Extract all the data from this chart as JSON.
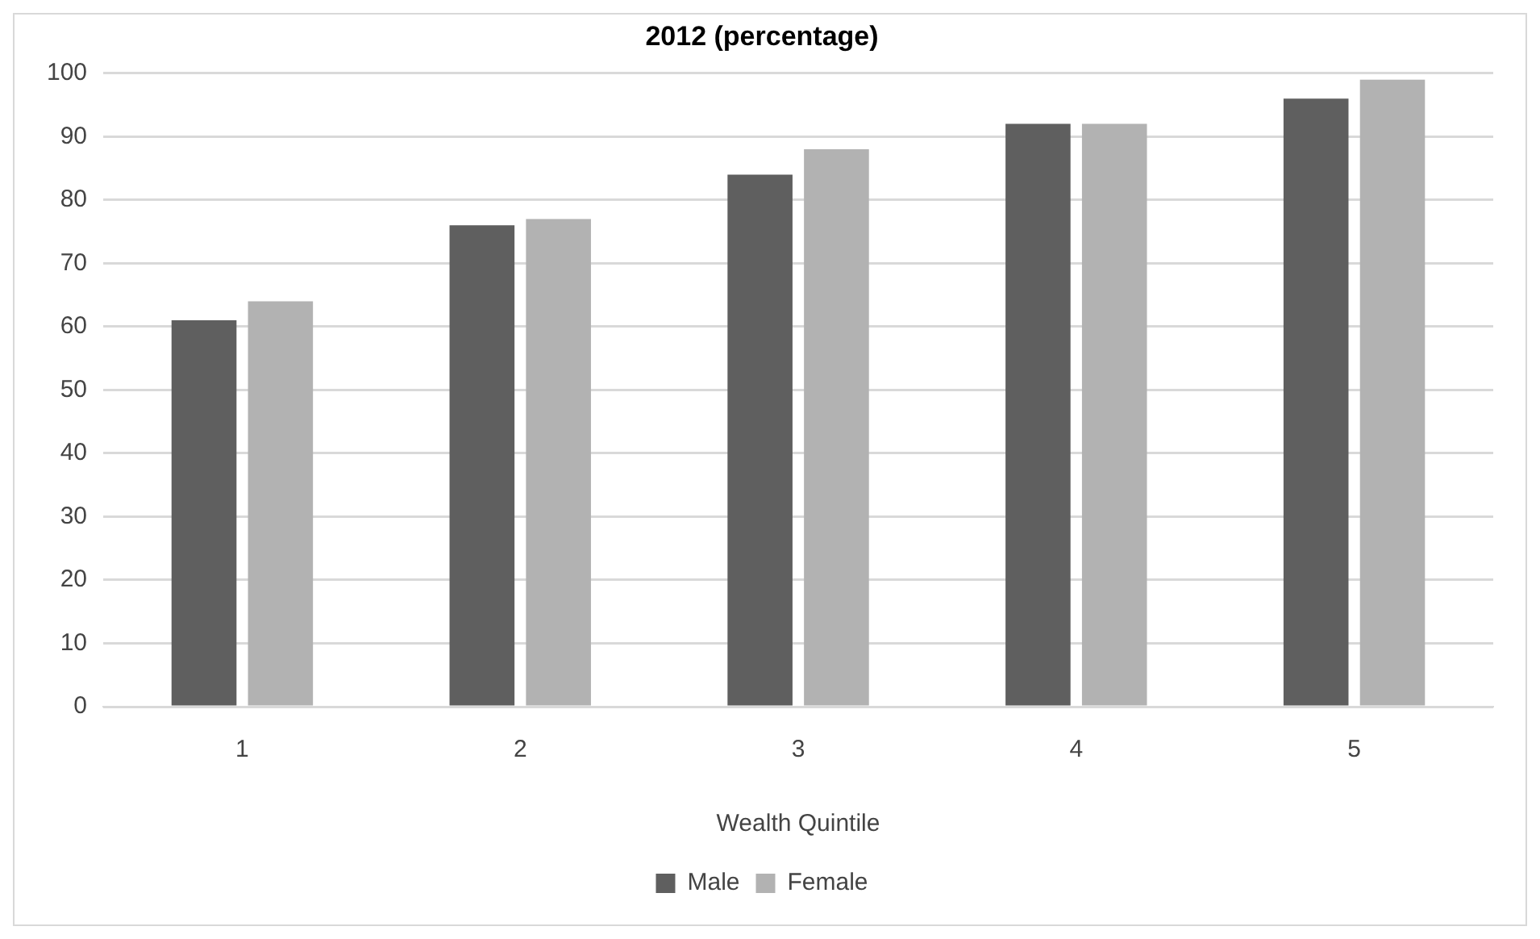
{
  "chart_data": {
    "type": "bar",
    "title": "2012 (percentage)",
    "xlabel": "Wealth Quintile",
    "categories": [
      "1",
      "2",
      "3",
      "4",
      "5"
    ],
    "series": [
      {
        "name": "Male",
        "color": "#5f5f5f",
        "values": [
          61,
          76,
          84,
          92,
          96
        ]
      },
      {
        "name": "Female",
        "color": "#b2b2b2",
        "values": [
          64,
          77,
          88,
          92,
          99
        ]
      }
    ],
    "ylim": [
      0,
      100
    ],
    "yticks": [
      0,
      10,
      20,
      30,
      40,
      50,
      60,
      70,
      80,
      90,
      100
    ],
    "grid": "y",
    "legend": "bottom"
  }
}
